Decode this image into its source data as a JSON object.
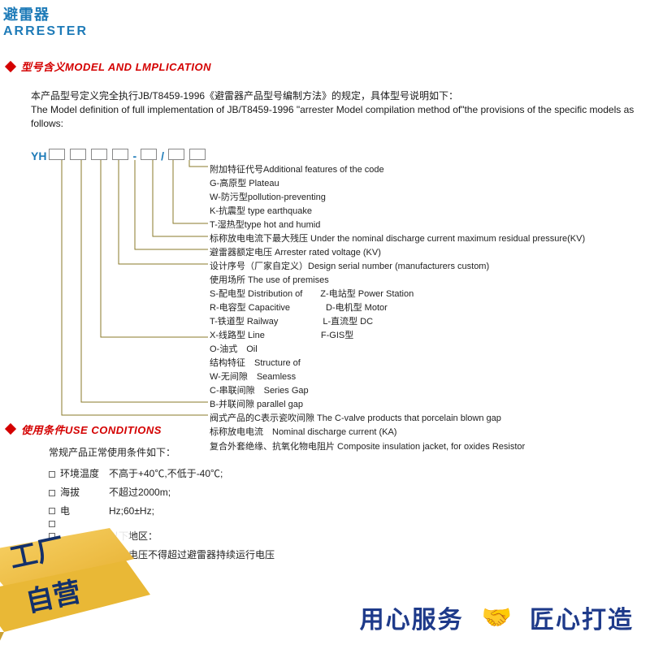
{
  "header": {
    "cn": "避雷器",
    "en": "ARRESTER"
  },
  "section1": {
    "title": "型号含义MODEL AND LMPLICATION",
    "intro_cn": "本产品型号定义完全执行JB/T8459-1996《避雷器产品型号编制方法》的规定，具体型号说明如下：",
    "intro_en": "The Model definition of full implementation of JB/T8459-1996 \"arrester Model compilation method of\"the provisions of the specific models as follows:"
  },
  "model": {
    "prefix": "YH",
    "legend": [
      "附加特征代号Additional features of the code",
      "G-高原型 Plateau",
      "W-防污型pollution-preventing",
      "K-抗震型 type earthquake",
      "T-湿热型type hot and humid",
      "标称放电电流下最大残压 Under the nominal discharge current maximum residual pressure(KV)",
      "避雷器额定电压 Arrester rated voltage (KV)",
      "设计序号（厂家自定义）Design serial number (manufacturers custom)",
      "使用场所 The use of premises",
      "S-配电型 Distribution of　　Z-电站型 Power Station",
      "R-电容型 Capacitive　　　　D-电机型 Motor",
      "T-铁道型 Railway　　　　　L-直流型 DC",
      "X-线路型 Line　　　　　　 F-GIS型",
      "O-油式　Oil",
      "结构特征　Structure of",
      "W-无间隙　Seamless",
      "C-串联间隙　Series Gap",
      "B-并联间隙 parallel gap",
      "阀式产品的C表示瓷吹间隙 The C-valve products that porcelain blown gap",
      "标称放电电流　Nominal discharge current (KA)",
      "复合外套绝缘、抗氧化物电阻片 Composite insulation jacket, for oxides Resistor"
    ],
    "line_color": "#8a7a2a"
  },
  "section2": {
    "title": "使用条件USE CONDITIONS",
    "lead": "常规产品正常使用条件如下：",
    "items": [
      "环境温度　不高于+40℃,不低于-40℃;",
      "海拔　　　不超过2000m;",
      "电　　　　Hz;60±Hz;",
      "",
      "　　　　　以下地区：",
      "　　　　　工频电压不得超过避雷器持续运行电压"
    ]
  },
  "banner": {
    "ribbon_top": "工厂",
    "ribbon_bottom": "自营",
    "ribbon_bg_top": "#f6c94a",
    "ribbon_bg_bottom": "#e9b836",
    "ribbon_text_color": "#13306b",
    "right1": "用心服务",
    "right2": "匠心打造",
    "right_color": "#1e3a8a"
  }
}
